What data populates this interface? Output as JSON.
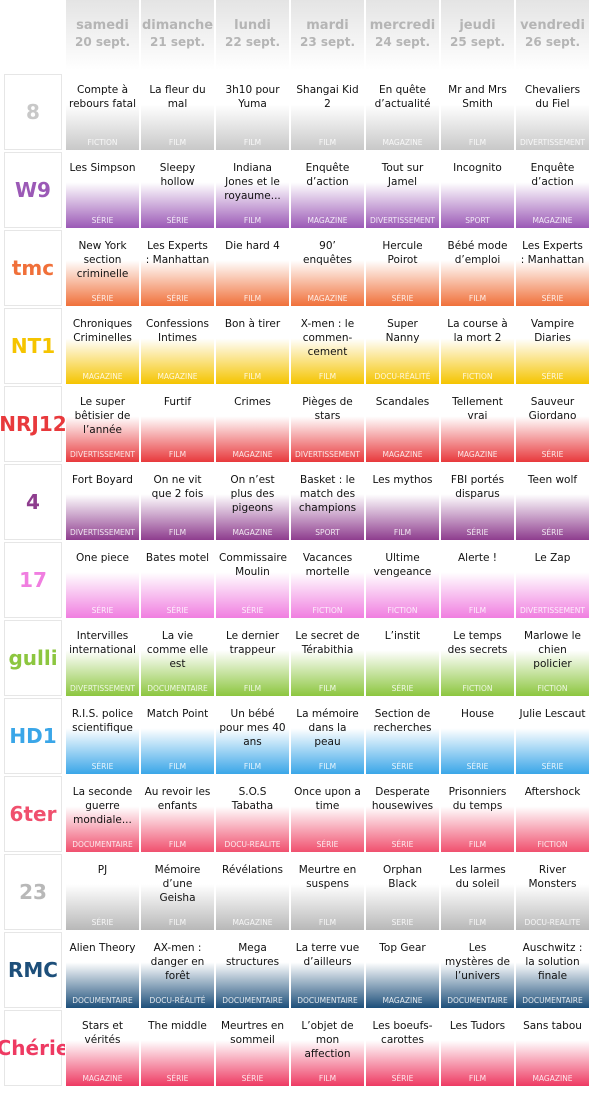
{
  "days": [
    {
      "name": "samedi",
      "date": "20 sept."
    },
    {
      "name": "dimanche",
      "date": "21 sept."
    },
    {
      "name": "lundi",
      "date": "22 sept."
    },
    {
      "name": "mardi",
      "date": "23 sept."
    },
    {
      "name": "mercredi",
      "date": "24 sept."
    },
    {
      "name": "jeudi",
      "date": "25 sept."
    },
    {
      "name": "vendredi",
      "date": "26 sept."
    }
  ],
  "channels": [
    {
      "logo": "8",
      "color": "#c8c8c8",
      "programs": [
        {
          "title": "Compte à rebours fatal",
          "genre": "FICTION"
        },
        {
          "title": "La fleur du mal",
          "genre": "FILM"
        },
        {
          "title": "3h10 pour Yuma",
          "genre": "FILM"
        },
        {
          "title": "Shangai Kid 2",
          "genre": "FILM"
        },
        {
          "title": "En quête d’actualité",
          "genre": "MAGAZINE"
        },
        {
          "title": "Mr and Mrs Smith",
          "genre": "FILM"
        },
        {
          "title": "Chevaliers du Fiel",
          "genre": "DIVERTISSEMENT"
        }
      ]
    },
    {
      "logo": "W9",
      "color": "#9b59b6",
      "programs": [
        {
          "title": "Les Simpson",
          "genre": "SÉRIE"
        },
        {
          "title": "Sleepy hollow",
          "genre": "SÉRIE"
        },
        {
          "title": "Indiana Jones et le royaume...",
          "genre": "FILM"
        },
        {
          "title": "Enquête d’action",
          "genre": "MAGAZINE"
        },
        {
          "title": "Tout sur Jamel",
          "genre": "DIVERTISSEMENT"
        },
        {
          "title": "Incognito",
          "genre": "SPORT"
        },
        {
          "title": "Enquête d’action",
          "genre": "MAGAZINE"
        }
      ]
    },
    {
      "logo": "tmc",
      "color": "#f0703a",
      "programs": [
        {
          "title": "New York section criminelle",
          "genre": "SÉRIE"
        },
        {
          "title": "Les Experts : Manhattan",
          "genre": "SÉRIE"
        },
        {
          "title": "Die hard 4",
          "genre": "FILM"
        },
        {
          "title": "90’ enquêtes",
          "genre": "MAGAZINE"
        },
        {
          "title": "Hercule Poirot",
          "genre": "SÉRIE"
        },
        {
          "title": "Bébé mode d’emploi",
          "genre": "FILM"
        },
        {
          "title": "Les Experts : Manhattan",
          "genre": "SÉRIE"
        }
      ]
    },
    {
      "logo": "NT1",
      "color": "#f5c400",
      "programs": [
        {
          "title": "Chroniques Criminelles",
          "genre": "MAGAZINE"
        },
        {
          "title": "Confessions Intimes",
          "genre": "MAGAZINE"
        },
        {
          "title": "Bon à tirer",
          "genre": "FILM"
        },
        {
          "title": "X-men : le commen-cement",
          "genre": "FILM"
        },
        {
          "title": "Super Nanny",
          "genre": "DOCU-RÉALITÉ"
        },
        {
          "title": "La course à la mort 2",
          "genre": "FICTION"
        },
        {
          "title": "Vampire Diaries",
          "genre": "SÉRIE"
        }
      ]
    },
    {
      "logo": "NRJ12",
      "color": "#e8393c",
      "programs": [
        {
          "title": "Le super bêtisier de l’année",
          "genre": "DIVERTISSEMENT"
        },
        {
          "title": "Furtif",
          "genre": "FILM"
        },
        {
          "title": "Crimes",
          "genre": "MAGAZINE"
        },
        {
          "title": "Pièges de stars",
          "genre": "DIVERTISSEMENT"
        },
        {
          "title": "Scandales",
          "genre": "MAGAZINE"
        },
        {
          "title": "Tellement vrai",
          "genre": "MAGAZINE"
        },
        {
          "title": "Sauveur Giordano",
          "genre": "SÉRIE"
        }
      ]
    },
    {
      "logo": "4",
      "color": "#8e3d8e",
      "programs": [
        {
          "title": "Fort Boyard",
          "genre": "DIVERTISSEMENT"
        },
        {
          "title": "On ne vit que 2 fois",
          "genre": "FILM"
        },
        {
          "title": "On n’est plus des pigeons",
          "genre": "MAGAZINE"
        },
        {
          "title": "Basket : le match des champions",
          "genre": "SPORT"
        },
        {
          "title": "Les mythos",
          "genre": "FILM"
        },
        {
          "title": "FBI portés disparus",
          "genre": "SÉRIE"
        },
        {
          "title": "Teen wolf",
          "genre": "SÉRIE"
        }
      ]
    },
    {
      "logo": "17",
      "color": "#f07ee0",
      "programs": [
        {
          "title": "One piece",
          "genre": "SÉRIE"
        },
        {
          "title": "Bates motel",
          "genre": "SÉRIE"
        },
        {
          "title": "Commissaire Moulin",
          "genre": "SÉRIE"
        },
        {
          "title": "Vacances mortelle",
          "genre": "FICTION"
        },
        {
          "title": "Ultime vengeance",
          "genre": "FICTION"
        },
        {
          "title": "Alerte !",
          "genre": "FILM"
        },
        {
          "title": "Le  Zap",
          "genre": "DIVERTISSEMENT"
        }
      ]
    },
    {
      "logo": "gulli",
      "color": "#8cc63f",
      "programs": [
        {
          "title": "Intervilles international",
          "genre": "DIVERTISSEMENT"
        },
        {
          "title": "La vie comme elle est",
          "genre": "DOCUMENTAIRE"
        },
        {
          "title": "Le dernier trappeur",
          "genre": "FILM"
        },
        {
          "title": "Le secret de Térabithia",
          "genre": "FILM"
        },
        {
          "title": "L’instit",
          "genre": "SÉRIE"
        },
        {
          "title": "Le temps des secrets",
          "genre": "FICTION"
        },
        {
          "title": "Marlowe le chien policier",
          "genre": "FICTION"
        }
      ]
    },
    {
      "logo": "HD1",
      "color": "#3aa6e8",
      "programs": [
        {
          "title": "R.I.S. police scientifique",
          "genre": "SÉRIE"
        },
        {
          "title": "Match Point",
          "genre": "FILM"
        },
        {
          "title": "Un bébé pour mes 40 ans",
          "genre": "FILM"
        },
        {
          "title": "La mémoire dans la peau",
          "genre": "FILM"
        },
        {
          "title": "Section de recherches",
          "genre": "SÉRIE"
        },
        {
          "title": "House",
          "genre": "SÉRIE"
        },
        {
          "title": "Julie Lescaut",
          "genre": "SÉRIE"
        }
      ]
    },
    {
      "logo": "6ter",
      "color": "#f0506e",
      "programs": [
        {
          "title": "La seconde guerre mondiale...",
          "genre": "DOCUMENTAIRE"
        },
        {
          "title": "Au revoir les enfants",
          "genre": "FILM"
        },
        {
          "title": "S.O.S Tabatha",
          "genre": "DOCU-REALITE"
        },
        {
          "title": "Once upon a time",
          "genre": "SÉRIE"
        },
        {
          "title": "Desperate housewives",
          "genre": "SÉRIE"
        },
        {
          "title": "Prisonniers du temps",
          "genre": "FILM"
        },
        {
          "title": "Aftershock",
          "genre": "FICTION"
        }
      ]
    },
    {
      "logo": "23",
      "color": "#b8b8b8",
      "programs": [
        {
          "title": "PJ",
          "genre": "SÉRIE"
        },
        {
          "title": "Mémoire d’une Geisha",
          "genre": "FILM"
        },
        {
          "title": "Révélations",
          "genre": "MAGAZINE"
        },
        {
          "title": "Meurtre en suspens",
          "genre": "FILM"
        },
        {
          "title": "Orphan Black",
          "genre": "SERIE"
        },
        {
          "title": "Les larmes du soleil",
          "genre": "FILM"
        },
        {
          "title": "River Monsters",
          "genre": "DOCU-REALITE"
        }
      ]
    },
    {
      "logo": "RMC",
      "color": "#1d4f7a",
      "programs": [
        {
          "title": "Alien Theory",
          "genre": "DOCUMENTAIRE"
        },
        {
          "title": "AX-men : danger en forêt",
          "genre": "DOCU-RÉALITÉ"
        },
        {
          "title": "Mega structures",
          "genre": "DOCUMENTAIRE"
        },
        {
          "title": "La terre vue d’ailleurs",
          "genre": "DOCUMENTAIRE"
        },
        {
          "title": "Top Gear",
          "genre": "MAGAZINE"
        },
        {
          "title": "Les mystères de l’univers",
          "genre": "DOCUMENTAIRE"
        },
        {
          "title": "Auschwitz : la solution finale",
          "genre": "DOCUMENTAIRE"
        }
      ]
    },
    {
      "logo": "Chérie",
      "color": "#ee3a62",
      "programs": [
        {
          "title": "Stars et vérités",
          "genre": "MAGAZINE"
        },
        {
          "title": "The middle",
          "genre": "SÉRIE"
        },
        {
          "title": "Meurtres en sommeil",
          "genre": "SÉRIE"
        },
        {
          "title": "L’objet de mon affection",
          "genre": "FILM"
        },
        {
          "title": "Les boeufs-carottes",
          "genre": "SÉRIE"
        },
        {
          "title": "Les Tudors",
          "genre": "FILM"
        },
        {
          "title": "Sans tabou",
          "genre": "MAGAZINE"
        }
      ]
    }
  ]
}
